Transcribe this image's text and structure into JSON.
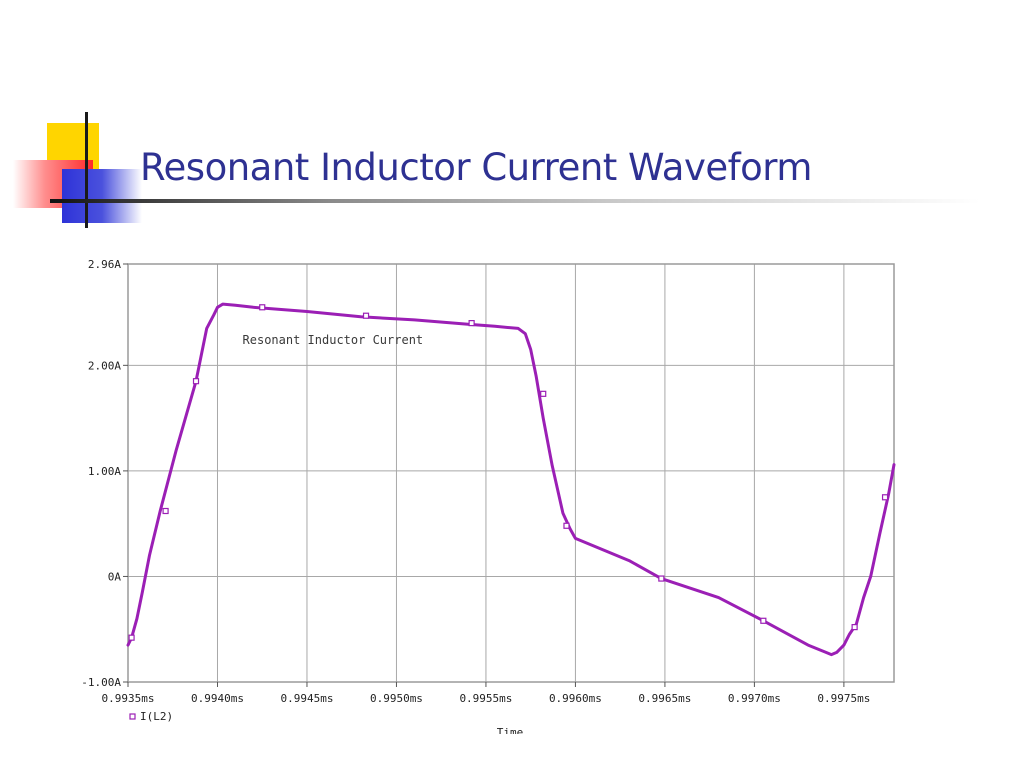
{
  "slide": {
    "title": "Resonant Inductor Current Waveform"
  },
  "chart_data": {
    "type": "line",
    "annotation": "Resonant Inductor Current",
    "xlabel": "Time",
    "ylabel": "",
    "xlim": [
      0.9935,
      0.99778
    ],
    "ylim": [
      -1.0,
      2.96
    ],
    "x_ticks": [
      0.9935,
      0.994,
      0.9945,
      0.995,
      0.9955,
      0.996,
      0.9965,
      0.997,
      0.9975
    ],
    "x_tick_labels": [
      "0.9935ms",
      "0.9940ms",
      "0.9945ms",
      "0.9950ms",
      "0.9955ms",
      "0.9960ms",
      "0.9965ms",
      "0.9970ms",
      "0.9975ms"
    ],
    "y_ticks": [
      -1.0,
      0.0,
      1.0,
      2.0,
      2.96
    ],
    "y_tick_labels": [
      "-1.00A",
      "0A",
      "1.00A",
      "2.00A",
      "2.96A"
    ],
    "grid": true,
    "legend_position": "bottom-left",
    "series": [
      {
        "name": "I(L2)",
        "color": "#9b1fb5",
        "x": [
          0.9935,
          0.99352,
          0.99355,
          0.99358,
          0.99362,
          0.99368,
          0.99377,
          0.99388,
          0.99394,
          0.99398,
          0.994,
          0.99403,
          0.9941,
          0.9942,
          0.9945,
          0.9948,
          0.9951,
          0.9954,
          0.99555,
          0.99568,
          0.99572,
          0.99575,
          0.99578,
          0.99582,
          0.99587,
          0.99593,
          0.99597,
          0.996,
          0.9963,
          0.99648,
          0.9968,
          0.99705,
          0.9973,
          0.9974,
          0.99743,
          0.99746,
          0.9975,
          0.99753,
          0.99757,
          0.99761,
          0.99765,
          0.9977,
          0.99775,
          0.99778
        ],
        "y": [
          -0.65,
          -0.58,
          -0.4,
          -0.15,
          0.2,
          0.62,
          1.2,
          1.85,
          2.35,
          2.48,
          2.55,
          2.58,
          2.57,
          2.55,
          2.51,
          2.46,
          2.43,
          2.39,
          2.37,
          2.35,
          2.3,
          2.15,
          1.9,
          1.5,
          1.05,
          0.6,
          0.45,
          0.36,
          0.15,
          -0.02,
          -0.2,
          -0.42,
          -0.65,
          -0.72,
          -0.74,
          -0.72,
          -0.65,
          -0.55,
          -0.45,
          -0.2,
          0.0,
          0.4,
          0.78,
          1.06
        ]
      }
    ],
    "markers": {
      "x": [
        0.99352,
        0.99371,
        0.99388,
        0.99425,
        0.99483,
        0.99542,
        0.99582,
        0.99595,
        0.99648,
        0.99705,
        0.99756,
        0.99773
      ],
      "y": [
        -0.58,
        0.62,
        1.85,
        2.55,
        2.47,
        2.4,
        1.73,
        0.48,
        -0.02,
        -0.42,
        -0.48,
        0.75
      ]
    }
  }
}
